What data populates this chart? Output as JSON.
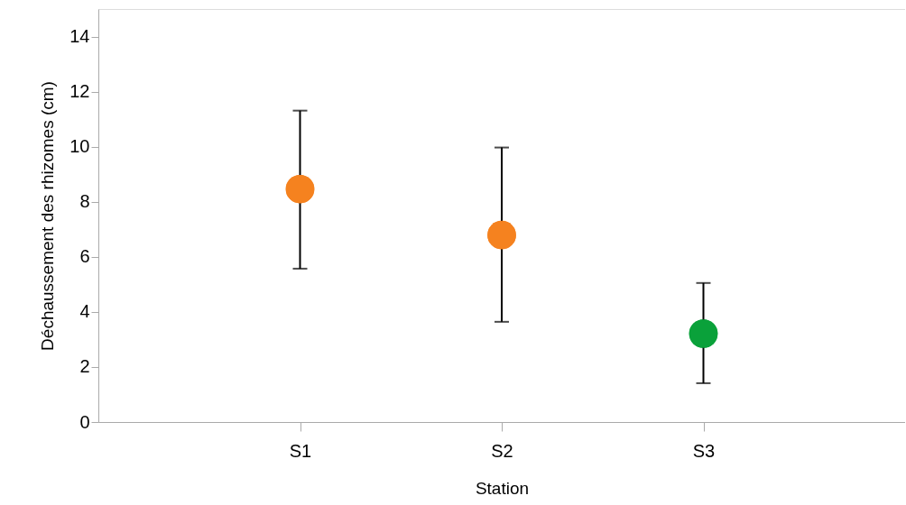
{
  "chart_data": {
    "type": "scatter",
    "xlabel": "Station",
    "ylabel": "Déchaussement des rhizomes (cm)",
    "categories": [
      "S1",
      "S2",
      "S3"
    ],
    "values": [
      8.46,
      6.79,
      3.21
    ],
    "colors": [
      "#f5821f",
      "#f5821f",
      "#0aa13a"
    ],
    "errors": [
      [
        5.57,
        11.31
      ],
      [
        3.64,
        9.97
      ],
      [
        1.41,
        5.05
      ]
    ],
    "ylim": [
      0,
      15
    ],
    "yticks": [
      0,
      2,
      4,
      6,
      8,
      10,
      12,
      14
    ],
    "grid": false,
    "marker": "circle"
  }
}
